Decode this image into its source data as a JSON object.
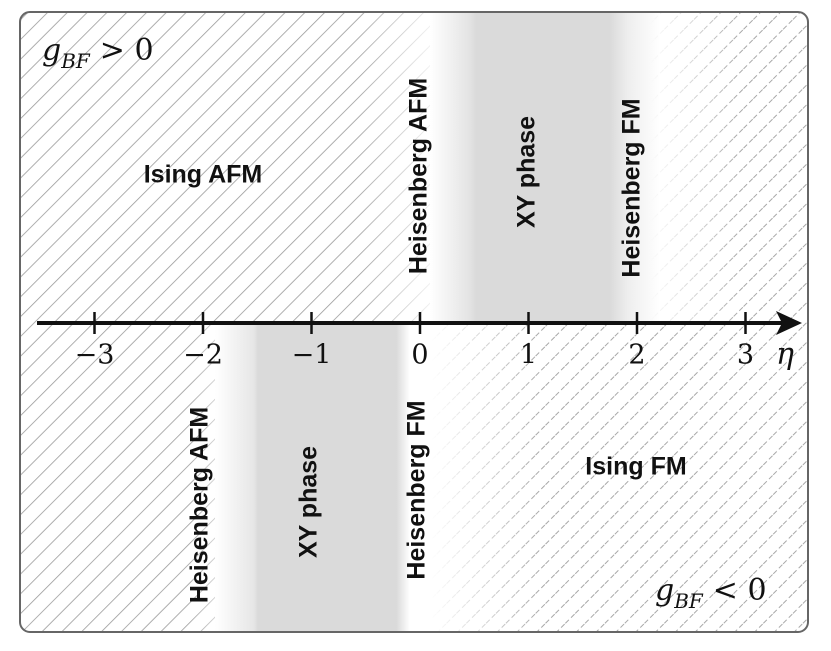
{
  "top_label": {
    "symbol": "g",
    "subscript": "BF",
    "relation": "> 0"
  },
  "bottom_label": {
    "symbol": "g",
    "subscript": "BF",
    "relation": "< 0"
  },
  "axis": {
    "label": "η",
    "ticks": [
      {
        "value": -3,
        "label": "−3"
      },
      {
        "value": -2,
        "label": "−2"
      },
      {
        "value": -1,
        "label": "−1"
      },
      0,
      1,
      2,
      3
    ]
  },
  "upper_regions": [
    "Ising AFM",
    "Heisenberg AFM",
    "XY phase",
    "Heisenberg FM"
  ],
  "lower_regions": [
    "Heisenberg AFM",
    "XY phase",
    "Heisenberg FM",
    "Ising FM"
  ]
}
